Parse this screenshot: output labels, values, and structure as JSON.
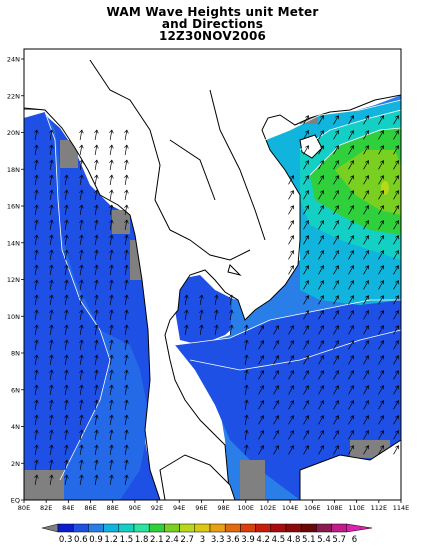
{
  "title": {
    "line1": "WAM Wave Heights unit Meter",
    "line2": "and Directions",
    "line3": "12Z30NOV2006"
  },
  "axes": {
    "lon_labels": [
      "80E",
      "82E",
      "84E",
      "86E",
      "88E",
      "90E",
      "92E",
      "94E",
      "96E",
      "98E",
      "100E",
      "102E",
      "104E",
      "106E",
      "108E",
      "110E",
      "112E",
      "114E"
    ],
    "lat_labels": [
      "EQ",
      "2N",
      "4N",
      "6N",
      "8N",
      "10N",
      "12N",
      "14N",
      "16N",
      "18N",
      "20N",
      "22N",
      "24N"
    ]
  },
  "colorbar": {
    "labels": [
      "0.3",
      "0.6",
      "0.9",
      "1.2",
      "1.5",
      "1.8",
      "2.1",
      "2.4",
      "2.7",
      "3",
      "3.3",
      "3.6",
      "3.9",
      "4.2",
      "4.5",
      "4.8",
      "5.1",
      "5.4",
      "5.7",
      "6"
    ],
    "colors": [
      "#0a1ecc",
      "#1e50e6",
      "#2a7ee8",
      "#10b4dc",
      "#14cfc4",
      "#2ce3a0",
      "#30d03c",
      "#7ad020",
      "#b8d81c",
      "#dcc814",
      "#e8a014",
      "#e06a12",
      "#d8400c",
      "#c81c0c",
      "#a80c0c",
      "#8a0a0a",
      "#6a0808",
      "#8a1a50",
      "#c01c8c",
      "#e020b0"
    ]
  },
  "legend_colors": {
    "land_mask": "#808080",
    "ocean_low": "#1e50e6",
    "ocean_mid": "#2a7ee8",
    "ocean_high": "#30d03c",
    "peak": "#b8d81c"
  }
}
